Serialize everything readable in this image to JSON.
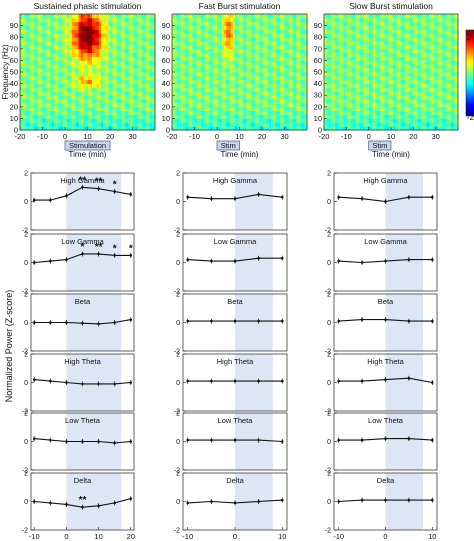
{
  "figure": {
    "colorbar": {
      "max_label": "2",
      "min_label": "-2"
    },
    "spectrograms": [
      {
        "title": "Sustained phasic stimulation",
        "ylabel": "Frequency (Hz)",
        "xlabel": "Time (min)",
        "stim_label": "Stimulation",
        "xticks": [
          -20,
          -10,
          0,
          10,
          20,
          30
        ],
        "yticks": [
          0,
          10,
          20,
          30,
          40,
          50,
          60,
          70,
          80,
          90
        ],
        "xlim": [
          -20,
          40
        ],
        "ylim": [
          0,
          100
        ],
        "stim_window": [
          0,
          20
        ],
        "hotspots": [
          {
            "t": 10,
            "f": 82,
            "dt": 4.5,
            "df": 14,
            "z": 2.3
          },
          {
            "t": 10,
            "f": 42,
            "dt": 4,
            "df": 4,
            "z": 0.8
          }
        ]
      },
      {
        "title": "Fast Burst stimulation",
        "ylabel": "",
        "xlabel": "Time (min)",
        "stim_label": "Stim",
        "xticks": [
          -20,
          -10,
          0,
          10,
          20,
          30
        ],
        "yticks": [
          0,
          10,
          20,
          30,
          40,
          50,
          60,
          70,
          80,
          90
        ],
        "xlim": [
          -20,
          40
        ],
        "ylim": [
          0,
          100
        ],
        "stim_window": [
          0,
          10
        ],
        "hotspots": [
          {
            "t": 5,
            "f": 85,
            "dt": 1.2,
            "df": 14,
            "z": 1.3
          }
        ]
      },
      {
        "title": "Slow Burst stimulation",
        "ylabel": "",
        "xlabel": "Time (min)",
        "stim_label": "Stim",
        "xticks": [
          -20,
          -10,
          0,
          10,
          20,
          30
        ],
        "yticks": [
          0,
          10,
          20,
          30,
          40,
          50,
          60,
          70,
          80,
          90
        ],
        "xlim": [
          -20,
          40
        ],
        "ylim": [
          0,
          100
        ],
        "stim_window": [
          0,
          10
        ],
        "hotspots": []
      }
    ],
    "line_plots_ylabel": "Normalized Power (Z-score)"
  },
  "chart_data": [
    {
      "type": "line",
      "title": "Sustained phasic stimulation",
      "xlabel": "Time (min)",
      "ylabel": "Normalized Power (Z-score)",
      "x": [
        -10,
        -5,
        0,
        5,
        10,
        15,
        20
      ],
      "xticks": [
        -10,
        0,
        10,
        20
      ],
      "xlim": [
        -11,
        21
      ],
      "ylim": [
        -2,
        2
      ],
      "yticks": [
        -2,
        0,
        2
      ],
      "shaded_window": [
        0,
        17
      ],
      "bands": [
        {
          "name": "High Gamma",
          "values": [
            0.1,
            0.1,
            0.4,
            1.0,
            0.9,
            0.7,
            0.5
          ],
          "sig": [
            "",
            "",
            "",
            "**",
            "**",
            "*",
            ""
          ]
        },
        {
          "name": "Low Gamma",
          "values": [
            0.0,
            0.1,
            0.2,
            0.6,
            0.6,
            0.5,
            0.5
          ],
          "sig": [
            "",
            "",
            "",
            "*",
            "**",
            "*",
            "*"
          ]
        },
        {
          "name": "Beta",
          "values": [
            0.0,
            0.0,
            0.0,
            -0.05,
            -0.1,
            0.0,
            0.2
          ],
          "sig": [
            "",
            "",
            "",
            "",
            "",
            "",
            ""
          ]
        },
        {
          "name": "High Theta",
          "values": [
            0.2,
            0.1,
            0.0,
            -0.1,
            -0.1,
            -0.1,
            0.0
          ],
          "sig": [
            "",
            "",
            "",
            "",
            "",
            "",
            ""
          ]
        },
        {
          "name": "Low Theta",
          "values": [
            0.2,
            0.1,
            0.0,
            0.0,
            0.0,
            -0.1,
            0.0
          ],
          "sig": [
            "",
            "",
            "",
            "",
            "",
            "",
            ""
          ]
        },
        {
          "name": "Delta",
          "values": [
            0.0,
            -0.1,
            -0.2,
            -0.4,
            -0.3,
            -0.1,
            0.2
          ],
          "sig": [
            "",
            "",
            "",
            "**",
            "",
            "",
            ""
          ]
        }
      ]
    },
    {
      "type": "line",
      "title": "Fast Burst stimulation",
      "xlabel": "Time (min)",
      "ylabel": "",
      "x": [
        -10,
        -5,
        0,
        5,
        10
      ],
      "xticks": [
        -10,
        0,
        10
      ],
      "xlim": [
        -11,
        11
      ],
      "ylim": [
        -2,
        2
      ],
      "yticks": [
        -2,
        0,
        2
      ],
      "shaded_window": [
        0,
        8
      ],
      "bands": [
        {
          "name": "High Gamma",
          "values": [
            0.3,
            0.2,
            0.2,
            0.5,
            0.3
          ],
          "sig": [
            "",
            "",
            "",
            "",
            ""
          ]
        },
        {
          "name": "Low Gamma",
          "values": [
            0.2,
            0.1,
            0.1,
            0.3,
            0.3
          ],
          "sig": [
            "",
            "",
            "",
            "",
            ""
          ]
        },
        {
          "name": "Beta",
          "values": [
            0.1,
            0.1,
            0.1,
            0.1,
            0.1
          ],
          "sig": [
            "",
            "",
            "",
            "",
            ""
          ]
        },
        {
          "name": "High Theta",
          "values": [
            0.1,
            0.1,
            0.1,
            0.1,
            0.1
          ],
          "sig": [
            "",
            "",
            "",
            "",
            ""
          ]
        },
        {
          "name": "Low Theta",
          "values": [
            0.1,
            0.1,
            0.1,
            0.1,
            0.0
          ],
          "sig": [
            "",
            "",
            "",
            "",
            ""
          ]
        },
        {
          "name": "Delta",
          "values": [
            -0.1,
            0.0,
            -0.1,
            0.0,
            0.1
          ],
          "sig": [
            "",
            "",
            "",
            "",
            ""
          ]
        }
      ]
    },
    {
      "type": "line",
      "title": "Slow Burst stimulation",
      "xlabel": "Time (min)",
      "ylabel": "",
      "x": [
        -10,
        -5,
        0,
        5,
        10
      ],
      "xticks": [
        -10,
        0,
        10
      ],
      "xlim": [
        -11,
        11
      ],
      "ylim": [
        -2,
        2
      ],
      "yticks": [
        -2,
        0,
        2
      ],
      "shaded_window": [
        0,
        8
      ],
      "bands": [
        {
          "name": "High Gamma",
          "values": [
            0.3,
            0.2,
            0.0,
            0.3,
            0.3
          ],
          "sig": [
            "",
            "",
            "",
            "",
            ""
          ]
        },
        {
          "name": "Low Gamma",
          "values": [
            0.1,
            0.0,
            0.1,
            0.2,
            0.2
          ],
          "sig": [
            "",
            "",
            "",
            "",
            ""
          ]
        },
        {
          "name": "Beta",
          "values": [
            0.1,
            0.2,
            0.2,
            0.1,
            0.1
          ],
          "sig": [
            "",
            "",
            "",
            "",
            ""
          ]
        },
        {
          "name": "High Theta",
          "values": [
            0.1,
            0.1,
            0.2,
            0.3,
            0.0
          ],
          "sig": [
            "",
            "",
            "",
            "",
            ""
          ]
        },
        {
          "name": "Low Theta",
          "values": [
            0.1,
            0.1,
            0.2,
            0.2,
            0.1
          ],
          "sig": [
            "",
            "",
            "",
            "",
            ""
          ]
        },
        {
          "name": "Delta",
          "values": [
            0.0,
            0.1,
            0.1,
            0.1,
            0.1
          ],
          "sig": [
            "",
            "",
            "",
            "",
            ""
          ]
        }
      ]
    }
  ]
}
